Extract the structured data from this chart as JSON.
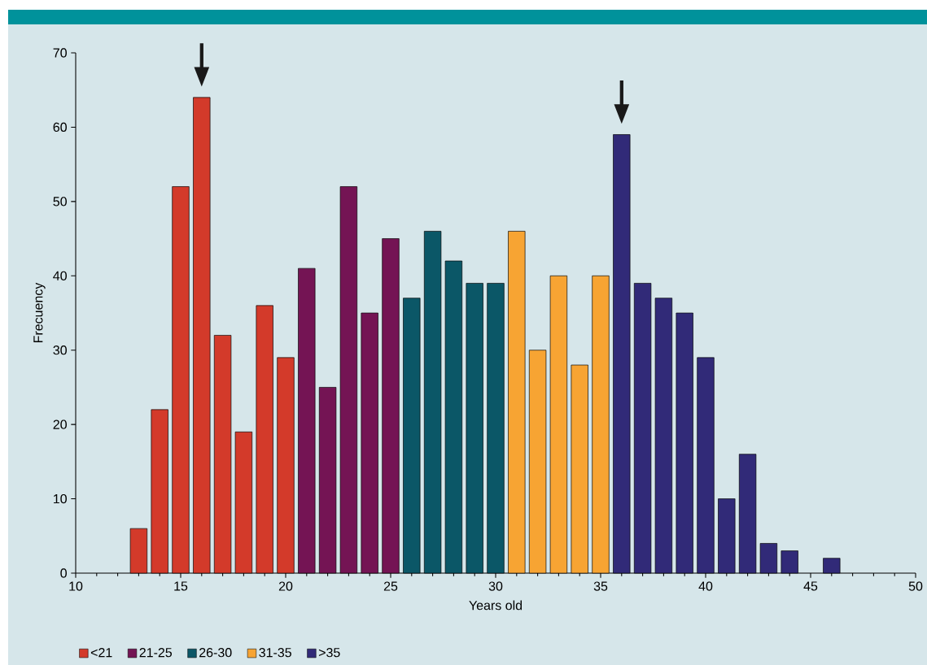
{
  "chart_data": {
    "type": "bar",
    "xlabel": "Years old",
    "ylabel": "Frecuency",
    "xlim": [
      10,
      50
    ],
    "xticks": [
      10,
      15,
      20,
      25,
      30,
      35,
      40,
      45,
      50
    ],
    "ylim": [
      0,
      70
    ],
    "yticks": [
      0,
      10,
      20,
      30,
      40,
      50,
      60,
      70
    ],
    "legend": "bottom left",
    "series": [
      {
        "name": "<21",
        "color": "#d33a2a",
        "x": [
          13,
          14,
          15,
          16,
          17,
          18,
          19,
          20
        ],
        "values": [
          6,
          22,
          52,
          64,
          32,
          19,
          36,
          29
        ]
      },
      {
        "name": "21-25",
        "color": "#741454",
        "x": [
          21,
          22,
          23,
          24,
          25
        ],
        "values": [
          41,
          25,
          52,
          35,
          45
        ]
      },
      {
        "name": "26-30",
        "color": "#0b5767",
        "x": [
          26,
          27,
          28,
          29,
          30
        ],
        "values": [
          37,
          46,
          42,
          39,
          39
        ]
      },
      {
        "name": "31-35",
        "color": "#f7a433",
        "x": [
          31,
          32,
          33,
          34,
          35
        ],
        "values": [
          46,
          30,
          40,
          28,
          40
        ]
      },
      {
        "name": ">35",
        "color": "#312a78",
        "x": [
          36,
          37,
          38,
          39,
          40,
          41,
          42,
          43,
          44,
          46
        ],
        "values": [
          59,
          39,
          37,
          35,
          29,
          10,
          16,
          4,
          3,
          2
        ]
      }
    ]
  }
}
